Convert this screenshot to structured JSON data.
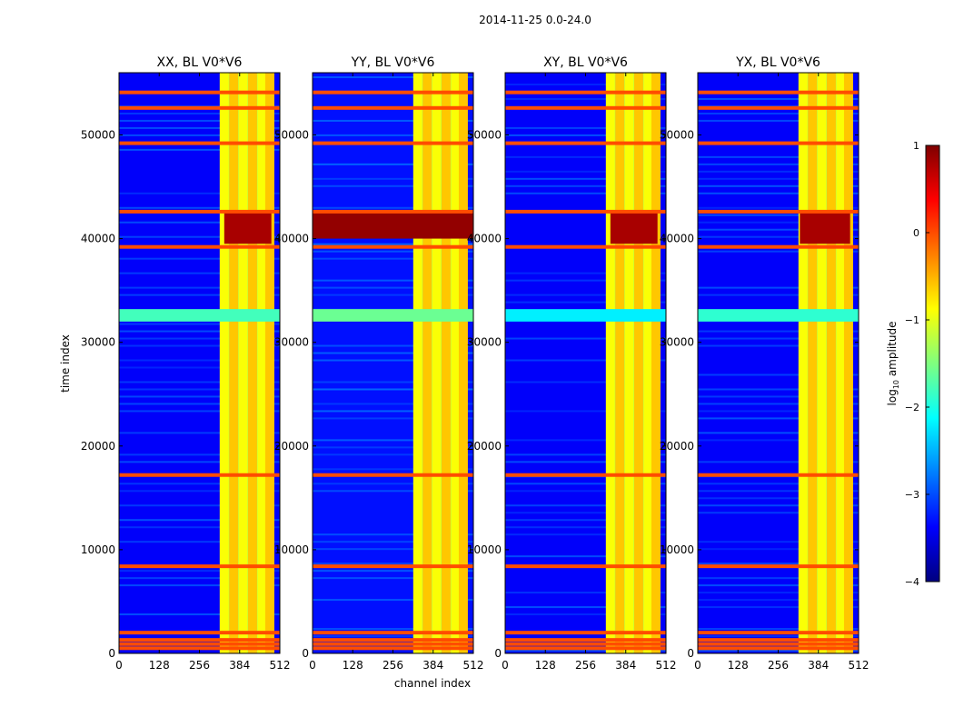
{
  "figure": {
    "suptitle": "2014-11-25 0.0-24.0",
    "xlabel": "channel index",
    "ylabel": "time index"
  },
  "colorbar": {
    "label": "log10 amplitude",
    "label_main": "log",
    "label_sub": "10",
    "label_rest": " amplitude",
    "range": [
      -4,
      1
    ],
    "ticks": [
      1,
      0,
      -1,
      -2,
      -3,
      -4
    ],
    "tick_labels": [
      "1",
      "0",
      "−1",
      "−2",
      "−3",
      "−4"
    ],
    "colormap": "jet",
    "colors": [
      "#00007f",
      "#0000ff",
      "#007fff",
      "#00ffff",
      "#7fff7f",
      "#ffff00",
      "#ff7f00",
      "#ff0000",
      "#7f0000"
    ]
  },
  "chart_data": [
    {
      "type": "heatmap",
      "title": "XX, BL V0*V6",
      "xlabel": "",
      "ylabel": "time index",
      "xlim": [
        0,
        512
      ],
      "ylim": [
        0,
        56000
      ],
      "xticks": [
        0,
        128,
        256,
        384,
        512
      ],
      "xtick_labels": [
        "0",
        "128",
        "256",
        "384",
        "512"
      ],
      "yticks": [
        0,
        10000,
        20000,
        30000,
        40000,
        50000
      ],
      "ytick_labels": [
        "0",
        "10000",
        "20000",
        "30000",
        "40000",
        "50000"
      ],
      "background_log_amp": -3.4,
      "bright_channel_range": [
        325,
        485
      ],
      "rfi_strip_channels": [
        335,
        365,
        395,
        425,
        455,
        480
      ],
      "flagged_time_rows": [
        500,
        900,
        1300,
        2000,
        8400,
        17200,
        39200,
        42600,
        49200,
        52600,
        54100
      ],
      "high_amp_block": {
        "channels": [
          335,
          485
        ],
        "time": [
          39500,
          42500
        ],
        "log_amp": 0.8
      },
      "moderate_band": {
        "time": [
          32000,
          33200
        ],
        "log_amp": -1.8
      }
    },
    {
      "type": "heatmap",
      "title": "YY, BL V0*V6",
      "xlabel": "channel index",
      "ylabel": "",
      "xlim": [
        0,
        512
      ],
      "ylim": [
        0,
        56000
      ],
      "xticks": [
        0,
        128,
        256,
        384,
        512
      ],
      "xtick_labels": [
        "0",
        "128",
        "256",
        "384",
        "512"
      ],
      "yticks": [
        0,
        10000,
        20000,
        30000,
        40000,
        50000
      ],
      "ytick_labels": [
        "0",
        "10000",
        "20000",
        "30000",
        "40000",
        "50000"
      ],
      "background_log_amp": -3.3,
      "bright_channel_range": [
        325,
        485
      ],
      "rfi_strip_channels": [
        335,
        365,
        395,
        425,
        455,
        480
      ],
      "flagged_time_rows": [
        500,
        900,
        1300,
        2000,
        8400,
        17200,
        39200,
        42600,
        49200,
        52600,
        54100
      ],
      "high_amp_block": {
        "channels": [
          0,
          512
        ],
        "time": [
          40000,
          42500
        ],
        "log_amp": 0.9
      },
      "moderate_band": {
        "time": [
          32000,
          33200
        ],
        "log_amp": -1.6
      }
    },
    {
      "type": "heatmap",
      "title": "XY, BL V0*V6",
      "xlabel": "",
      "ylabel": "",
      "xlim": [
        0,
        512
      ],
      "ylim": [
        0,
        56000
      ],
      "xticks": [
        0,
        128,
        256,
        384,
        512
      ],
      "xtick_labels": [
        "0",
        "128",
        "256",
        "384",
        "512"
      ],
      "yticks": [
        0,
        10000,
        20000,
        30000,
        40000,
        50000
      ],
      "ytick_labels": [
        "0",
        "10000",
        "20000",
        "30000",
        "40000",
        "50000"
      ],
      "background_log_amp": -3.4,
      "bright_channel_range": [
        325,
        485
      ],
      "rfi_strip_channels": [
        335,
        365,
        395,
        425,
        455,
        480
      ],
      "flagged_time_rows": [
        500,
        900,
        1300,
        2000,
        8400,
        17200,
        39200,
        42600,
        49200,
        52600,
        54100
      ],
      "high_amp_block": {
        "channels": [
          335,
          485
        ],
        "time": [
          39500,
          42500
        ],
        "log_amp": 0.8
      },
      "moderate_band": {
        "time": [
          32000,
          33200
        ],
        "log_amp": -2.2
      }
    },
    {
      "type": "heatmap",
      "title": "YX, BL V0*V6",
      "xlabel": "",
      "ylabel": "",
      "xlim": [
        0,
        512
      ],
      "ylim": [
        0,
        56000
      ],
      "xticks": [
        0,
        128,
        256,
        384,
        512
      ],
      "xtick_labels": [
        "0",
        "128",
        "256",
        "384",
        "512"
      ],
      "yticks": [
        0,
        10000,
        20000,
        30000,
        40000,
        50000
      ],
      "ytick_labels": [
        "0",
        "10000",
        "20000",
        "30000",
        "40000",
        "50000"
      ],
      "background_log_amp": -3.4,
      "bright_channel_range": [
        325,
        485
      ],
      "rfi_strip_channels": [
        335,
        365,
        395,
        425,
        455,
        480
      ],
      "flagged_time_rows": [
        500,
        900,
        1300,
        2000,
        8400,
        17200,
        39200,
        42600,
        49200,
        52600,
        54100
      ],
      "high_amp_block": {
        "channels": [
          325,
          485
        ],
        "time": [
          39500,
          42500
        ],
        "log_amp": 0.8
      },
      "moderate_band": {
        "time": [
          32000,
          33200
        ],
        "log_amp": -1.9
      }
    }
  ]
}
